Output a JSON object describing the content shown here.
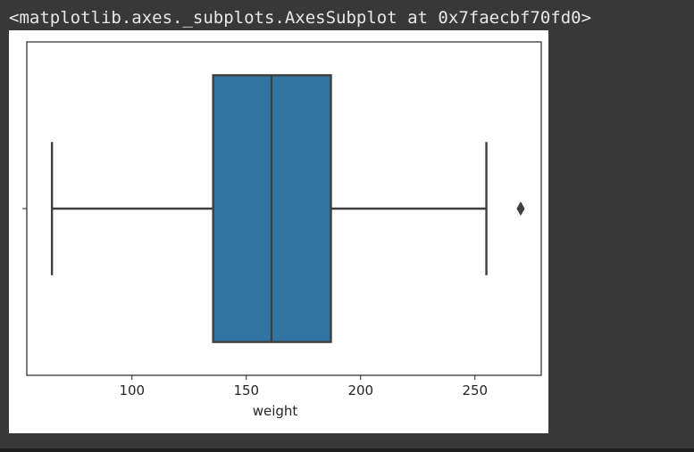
{
  "output": {
    "repr_text": "<matplotlib.axes._subplots.AxesSubplot at 0x7faecbf70fd0>"
  },
  "chart_data": {
    "type": "box",
    "orientation": "horizontal",
    "title": "",
    "xlabel": "weight",
    "ylabel": "",
    "xlim": [
      54,
      279
    ],
    "xticks": [
      100,
      150,
      200,
      250
    ],
    "xtick_labels": [
      "100",
      "150",
      "200",
      "250"
    ],
    "grid": false,
    "legend": "none",
    "box": {
      "whisker_low": 65,
      "q1": 135.5,
      "median": 161,
      "q3": 187,
      "whisker_high": 255,
      "outliers": [
        270
      ]
    },
    "colors": {
      "box_fill": "#3274a1",
      "line": "#3f3f3f",
      "spine": "#262626"
    }
  }
}
